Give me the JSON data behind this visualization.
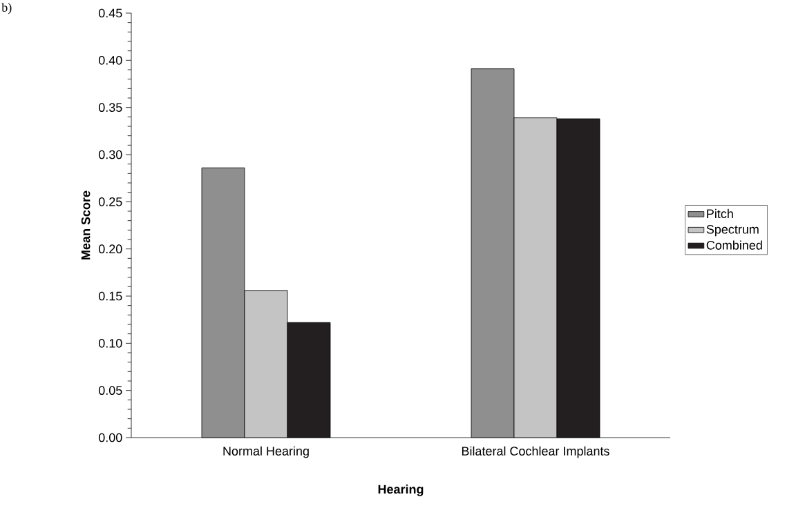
{
  "chart_data": {
    "type": "bar",
    "xlabel": "Hearing",
    "ylabel": "Mean Score",
    "annotations": [
      "b)"
    ],
    "categories": [
      "Normal Hearing",
      "Bilateral Cochlear Implants"
    ],
    "series": [
      {
        "name": "Pitch",
        "color": "#8f8f8f",
        "values": [
          0.286,
          0.391
        ]
      },
      {
        "name": "Spectrum",
        "color": "#c4c4c4",
        "values": [
          0.156,
          0.339
        ]
      },
      {
        "name": "Combined",
        "color": "#231f20",
        "values": [
          0.122,
          0.338
        ]
      }
    ],
    "ylim": [
      0,
      0.45
    ],
    "yticks": [
      {
        "value": 0,
        "label": "0.00"
      },
      {
        "value": 0.05,
        "label": "0.05"
      },
      {
        "value": 0.1,
        "label": "0.10"
      },
      {
        "value": 0.15,
        "label": "0.15"
      },
      {
        "value": 0.2,
        "label": "0.20"
      },
      {
        "value": 0.25,
        "label": "0.25"
      },
      {
        "value": 0.3,
        "label": "0.30"
      },
      {
        "value": 0.35,
        "label": "0.35"
      },
      {
        "value": 0.4,
        "label": "0.40"
      },
      {
        "value": 0.45,
        "label": "0.45"
      }
    ],
    "grid": false,
    "legend": "right"
  }
}
